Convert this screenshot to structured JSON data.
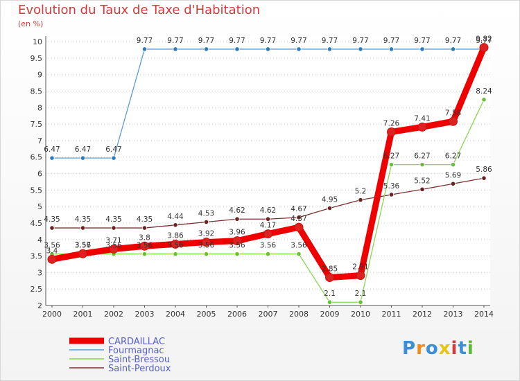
{
  "chart_data": {
    "type": "line",
    "title": "Evolution du Taux de Taxe d'Habitation",
    "subtitle": "(en %)",
    "x": [
      "2000",
      "2001",
      "2002",
      "2003",
      "2004",
      "2005",
      "2006",
      "2007",
      "2008",
      "2009",
      "2010",
      "2011",
      "2012",
      "2013",
      "2014"
    ],
    "ylim": [
      2,
      10
    ],
    "yticks": [
      "2",
      "2.5",
      "3",
      "3.5",
      "4",
      "4.5",
      "5",
      "5.5",
      "6",
      "6.5",
      "7",
      "7.5",
      "8",
      "8.5",
      "9",
      "9.5",
      "10"
    ],
    "series": [
      {
        "name": "CARDAILLAC",
        "color": "#ee0000",
        "point_color": "#dd2222",
        "width": 9,
        "radius": 6,
        "values": [
          3.4,
          3.57,
          3.71,
          3.8,
          3.86,
          3.92,
          3.96,
          4.17,
          4.37,
          2.85,
          2.91,
          7.26,
          7.41,
          7.58,
          9.82
        ],
        "labels": [
          "3.4",
          "3.57",
          "3.71",
          "3.8",
          "3.86",
          "3.92",
          "3.96",
          "4.17",
          "4.37",
          "2.85",
          "2.91",
          "7.26",
          "7.41",
          "7.58",
          "9.82"
        ]
      },
      {
        "name": "Fourmagnac",
        "color": "#5b9bd5",
        "point_color": "#2f7ab8",
        "width": 1.3,
        "radius": 3.2,
        "values": [
          6.47,
          6.47,
          6.47,
          9.77,
          9.77,
          9.77,
          9.77,
          9.77,
          9.77,
          9.77,
          9.77,
          9.77,
          9.77,
          9.77,
          9.77
        ],
        "labels": [
          "6.47",
          "6.47",
          "6.47",
          "9.77",
          "9.77",
          "9.77",
          "9.77",
          "9.77",
          "9.77",
          "9.77",
          "9.77",
          "9.77",
          "9.77",
          "9.77",
          "9.77"
        ]
      },
      {
        "name": "Saint-Bressou",
        "color": "#88d650",
        "point_color": "#66c233",
        "width": 1.3,
        "radius": 3.2,
        "values": [
          3.56,
          3.56,
          3.56,
          3.56,
          3.56,
          3.56,
          3.56,
          3.56,
          3.56,
          2.1,
          2.1,
          6.27,
          6.27,
          6.27,
          8.24
        ],
        "labels": [
          "3.56",
          "3.56",
          "3.56",
          "3.56",
          "3.56",
          "3.56",
          "3.56",
          "3.56",
          "3.56",
          "2.1",
          "2.1",
          "6.27",
          "6.27",
          "6.27",
          "8.24"
        ]
      },
      {
        "name": "Saint-Perdoux",
        "color": "#7a3030",
        "point_color": "#6a2222",
        "width": 1.3,
        "radius": 3.2,
        "values": [
          4.35,
          4.35,
          4.35,
          4.35,
          4.44,
          4.53,
          4.62,
          4.62,
          4.67,
          4.95,
          5.2,
          5.36,
          5.52,
          5.69,
          5.86
        ],
        "labels": [
          "4.35",
          "4.35",
          "4.35",
          "4.35",
          "4.44",
          "4.53",
          "4.62",
          "4.62",
          "4.67",
          "4.95",
          "5.2",
          "5.36",
          "5.52",
          "5.69",
          "5.86"
        ]
      }
    ],
    "legend_position": "bottom-left"
  },
  "logo": {
    "letters": [
      "P",
      "r",
      "o",
      "x",
      "i",
      "t",
      "i"
    ],
    "colors": [
      "#3a8fd8",
      "#f08a1c",
      "#3a8fd8",
      "#e8c41a",
      "#d33a3a",
      "#3a8fd8",
      "#5cb832"
    ]
  }
}
